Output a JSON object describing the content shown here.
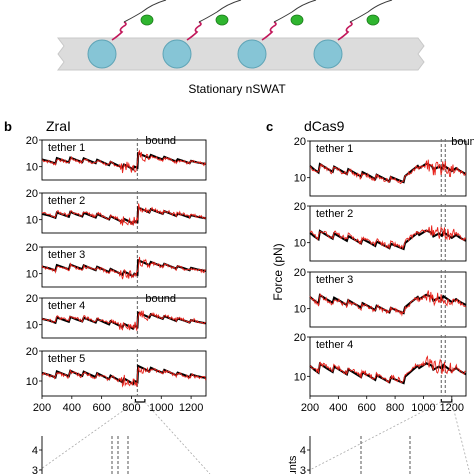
{
  "schematic": {
    "label": "Stationary nSWAT",
    "bead_color": "#86c5d6",
    "protein_color": "#2fb52f",
    "dna_color": "#c2185b",
    "surface_color": "#dcdcdc"
  },
  "panels": [
    {
      "letter": "b",
      "title": "ZraI",
      "tethers": [
        "tether 1",
        "tether 2",
        "tether 3",
        "tether 4",
        "tether 5"
      ],
      "bound_label": "bound",
      "bound_rows": [
        0,
        3
      ],
      "bound_x": 840,
      "double_bound_line": false
    },
    {
      "letter": "c",
      "title": "dCas9",
      "tethers": [
        "tether 1",
        "tether 2",
        "tether 3",
        "tether 4"
      ],
      "bound_label": "bound",
      "bound_rows": [
        0
      ],
      "bound_x": 1140,
      "double_bound_line": true
    }
  ],
  "lower_panel": {
    "ylabel": "unts"
  },
  "colors": {
    "model": "#000000",
    "data": "#e8231c",
    "marker": "#777777"
  },
  "chart_data": [
    {
      "type": "line",
      "title": "ZraI",
      "xlabel": "",
      "ylabel": "",
      "xlim": [
        200,
        1300
      ],
      "ylim": [
        5,
        20
      ],
      "x_ticks": [
        200,
        400,
        600,
        800,
        1000,
        1200
      ],
      "y_ticks": [
        10,
        20
      ],
      "grid": false,
      "panels": [
        "tether 1",
        "tether 2",
        "tether 3",
        "tether 4",
        "tether 5"
      ],
      "series": [
        {
          "x": [
            200,
            250,
            290,
            300,
            340,
            380,
            390,
            430,
            470,
            480,
            520,
            560,
            570,
            610,
            650,
            660,
            700,
            740,
            750,
            780,
            810,
            820,
            840,
            845,
            880,
            920,
            930,
            970,
            1010,
            1020,
            1060,
            1100,
            1110,
            1150,
            1190,
            1200,
            1240,
            1300
          ],
          "y": [
            12.5,
            11.8,
            11.0,
            13.0,
            12.2,
            11.4,
            13.2,
            12.3,
            11.5,
            12.9,
            12.0,
            11.1,
            12.4,
            11.4,
            10.4,
            11.6,
            10.5,
            9.4,
            10.6,
            9.8,
            8.8,
            9.8,
            9.4,
            14.8,
            14.0,
            13.0,
            14.2,
            13.3,
            12.5,
            13.5,
            12.6,
            11.7,
            12.6,
            11.9,
            11.1,
            12.0,
            11.4,
            10.8
          ]
        }
      ],
      "annotations": [
        "bound"
      ]
    },
    {
      "type": "line",
      "title": "dCas9",
      "xlabel": "",
      "ylabel": "Force (pN)",
      "xlim": [
        200,
        1300
      ],
      "ylim": [
        5,
        20
      ],
      "x_ticks": [
        200,
        400,
        600,
        800,
        1000,
        1200
      ],
      "y_ticks": [
        10,
        20
      ],
      "grid": false,
      "panels": [
        "tether 1",
        "tether 2",
        "tether 3",
        "tether 4"
      ],
      "series": [
        {
          "x": [
            200,
            230,
            260,
            270,
            320,
            360,
            370,
            420,
            460,
            470,
            520,
            560,
            570,
            620,
            660,
            670,
            720,
            760,
            770,
            820,
            860,
            870,
            920,
            960,
            970,
            1020,
            1060,
            1070,
            1110,
            1130,
            1140,
            1170,
            1200,
            1230,
            1260,
            1300
          ],
          "y": [
            13.0,
            12.0,
            11.2,
            13.5,
            12.3,
            11.4,
            12.8,
            11.7,
            10.8,
            12.1,
            11.0,
            10.1,
            11.3,
            10.3,
            9.4,
            10.6,
            9.6,
            8.8,
            10.0,
            9.2,
            8.6,
            10.2,
            11.8,
            13.0,
            12.4,
            13.6,
            13.0,
            12.0,
            12.8,
            12.2,
            13.2,
            12.4,
            11.6,
            12.4,
            11.6,
            10.8
          ]
        }
      ],
      "annotations": [
        "bound"
      ]
    }
  ]
}
